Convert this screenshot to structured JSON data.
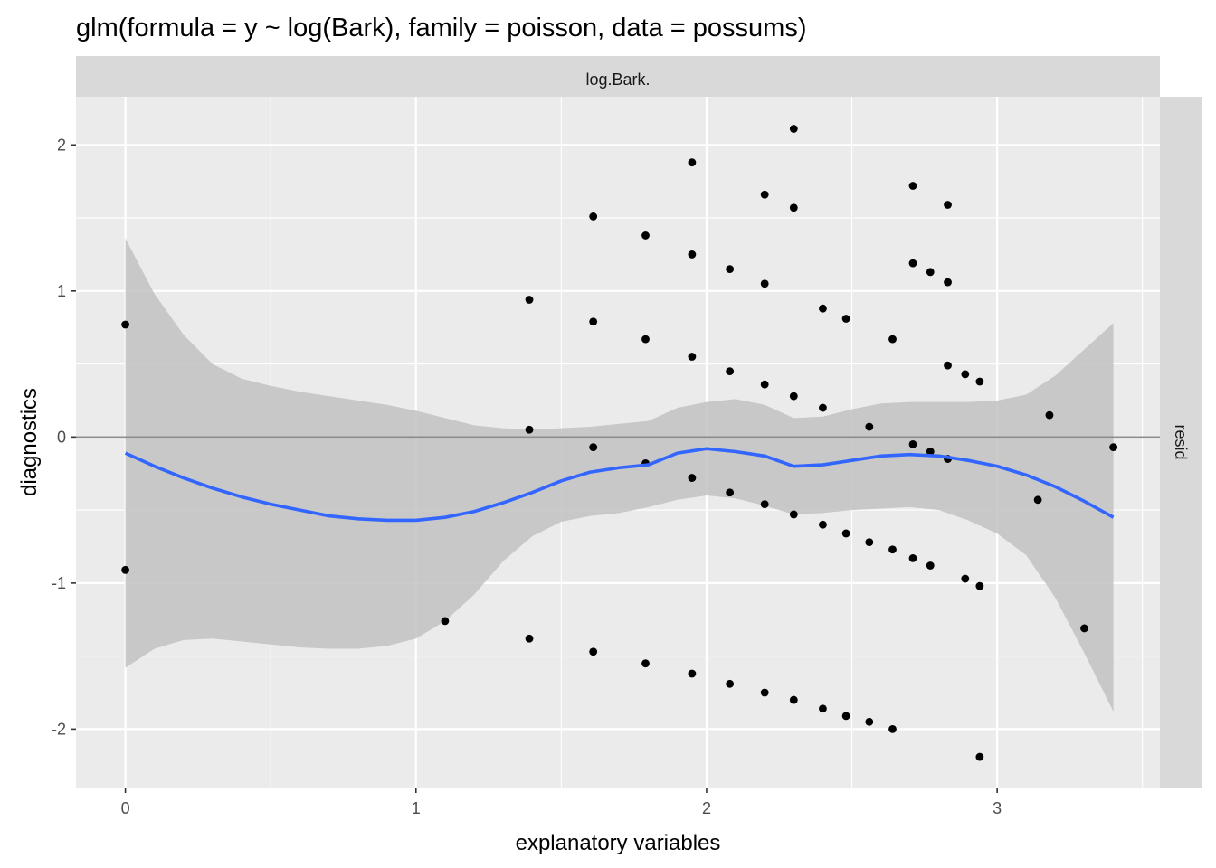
{
  "chart_data": {
    "type": "scatter",
    "title": "glm(formula = y ~ log(Bark), family = poisson, data = possums)",
    "xlabel": "explanatory variables",
    "ylabel": "diagnostics",
    "facet_top_label": "log.Bark.",
    "facet_right_label": "resid",
    "xlim": [
      -0.17,
      3.56
    ],
    "ylim": [
      -2.4,
      2.33
    ],
    "x_ticks": [
      0,
      1,
      2,
      3
    ],
    "x_tick_labels": [
      "0",
      "1",
      "2",
      "3"
    ],
    "y_ticks": [
      -2,
      -1,
      0,
      1,
      2
    ],
    "y_tick_labels": [
      "-2",
      "-1",
      "0",
      "1",
      "2"
    ],
    "hline": 0,
    "colors": {
      "panel_bg": "#ebebeb",
      "grid": "#ffffff",
      "strip_bg": "#d9d9d9",
      "point": "#000000",
      "smooth": "#3366ff",
      "ribbon": "#c2c2c2",
      "hline": "#8c8c8c"
    },
    "points": [
      {
        "x": 0.0,
        "y": 0.77
      },
      {
        "x": 0.0,
        "y": -0.91
      },
      {
        "x": 1.1,
        "y": -1.26
      },
      {
        "x": 1.39,
        "y": 0.94
      },
      {
        "x": 1.39,
        "y": 0.05
      },
      {
        "x": 1.39,
        "y": -1.38
      },
      {
        "x": 1.61,
        "y": 1.51
      },
      {
        "x": 1.61,
        "y": 0.79
      },
      {
        "x": 1.61,
        "y": -0.07
      },
      {
        "x": 1.61,
        "y": -1.47
      },
      {
        "x": 1.79,
        "y": 1.38
      },
      {
        "x": 1.79,
        "y": 0.67
      },
      {
        "x": 1.79,
        "y": -0.18
      },
      {
        "x": 1.79,
        "y": -1.55
      },
      {
        "x": 1.95,
        "y": 1.88
      },
      {
        "x": 1.95,
        "y": 1.25
      },
      {
        "x": 1.95,
        "y": 0.55
      },
      {
        "x": 1.95,
        "y": -0.28
      },
      {
        "x": 1.95,
        "y": -1.62
      },
      {
        "x": 2.08,
        "y": 1.15
      },
      {
        "x": 2.08,
        "y": 0.45
      },
      {
        "x": 2.08,
        "y": -0.38
      },
      {
        "x": 2.08,
        "y": -1.69
      },
      {
        "x": 2.2,
        "y": 1.66
      },
      {
        "x": 2.2,
        "y": 1.05
      },
      {
        "x": 2.2,
        "y": 0.36
      },
      {
        "x": 2.2,
        "y": -0.46
      },
      {
        "x": 2.2,
        "y": -1.75
      },
      {
        "x": 2.3,
        "y": 2.11
      },
      {
        "x": 2.3,
        "y": 1.57
      },
      {
        "x": 2.3,
        "y": 0.28
      },
      {
        "x": 2.3,
        "y": -0.53
      },
      {
        "x": 2.3,
        "y": -1.8
      },
      {
        "x": 2.4,
        "y": 0.88
      },
      {
        "x": 2.4,
        "y": 0.2
      },
      {
        "x": 2.4,
        "y": -0.6
      },
      {
        "x": 2.4,
        "y": -1.86
      },
      {
        "x": 2.48,
        "y": 0.81
      },
      {
        "x": 2.48,
        "y": -0.66
      },
      {
        "x": 2.48,
        "y": -1.91
      },
      {
        "x": 2.56,
        "y": 0.07
      },
      {
        "x": 2.56,
        "y": -0.72
      },
      {
        "x": 2.56,
        "y": -1.95
      },
      {
        "x": 2.64,
        "y": 0.67
      },
      {
        "x": 2.64,
        "y": -0.77
      },
      {
        "x": 2.64,
        "y": -2.0
      },
      {
        "x": 2.71,
        "y": 1.72
      },
      {
        "x": 2.71,
        "y": 1.19
      },
      {
        "x": 2.71,
        "y": -0.05
      },
      {
        "x": 2.71,
        "y": -0.83
      },
      {
        "x": 2.77,
        "y": 1.13
      },
      {
        "x": 2.77,
        "y": -0.1
      },
      {
        "x": 2.77,
        "y": -0.88
      },
      {
        "x": 2.83,
        "y": 1.59
      },
      {
        "x": 2.83,
        "y": 1.06
      },
      {
        "x": 2.83,
        "y": 0.49
      },
      {
        "x": 2.83,
        "y": -0.15
      },
      {
        "x": 2.89,
        "y": 0.43
      },
      {
        "x": 2.89,
        "y": -0.97
      },
      {
        "x": 2.94,
        "y": 0.38
      },
      {
        "x": 2.94,
        "y": -1.02
      },
      {
        "x": 2.94,
        "y": -2.19
      },
      {
        "x": 3.14,
        "y": -0.43
      },
      {
        "x": 3.18,
        "y": 0.15
      },
      {
        "x": 3.3,
        "y": -1.31
      },
      {
        "x": 3.4,
        "y": -0.07
      }
    ],
    "smooth": {
      "x": [
        0.0,
        0.1,
        0.2,
        0.3,
        0.4,
        0.5,
        0.6,
        0.7,
        0.8,
        0.9,
        1.0,
        1.1,
        1.2,
        1.3,
        1.4,
        1.5,
        1.6,
        1.7,
        1.8,
        1.9,
        2.0,
        2.1,
        2.2,
        2.3,
        2.4,
        2.5,
        2.6,
        2.7,
        2.8,
        2.9,
        3.0,
        3.1,
        3.2,
        3.3,
        3.4
      ],
      "y": [
        -0.11,
        -0.2,
        -0.28,
        -0.35,
        -0.41,
        -0.46,
        -0.5,
        -0.54,
        -0.56,
        -0.57,
        -0.57,
        -0.55,
        -0.51,
        -0.45,
        -0.38,
        -0.3,
        -0.24,
        -0.21,
        -0.19,
        -0.11,
        -0.08,
        -0.1,
        -0.13,
        -0.2,
        -0.19,
        -0.16,
        -0.13,
        -0.12,
        -0.13,
        -0.16,
        -0.2,
        -0.26,
        -0.34,
        -0.44,
        -0.55
      ],
      "upper": [
        1.36,
        0.98,
        0.7,
        0.5,
        0.4,
        0.35,
        0.31,
        0.28,
        0.25,
        0.22,
        0.18,
        0.13,
        0.08,
        0.06,
        0.05,
        0.06,
        0.07,
        0.09,
        0.11,
        0.2,
        0.24,
        0.26,
        0.22,
        0.13,
        0.14,
        0.19,
        0.23,
        0.24,
        0.24,
        0.24,
        0.25,
        0.29,
        0.42,
        0.6,
        0.78
      ],
      "lower": [
        -1.58,
        -1.45,
        -1.39,
        -1.38,
        -1.4,
        -1.42,
        -1.44,
        -1.45,
        -1.45,
        -1.43,
        -1.38,
        -1.26,
        -1.08,
        -0.85,
        -0.68,
        -0.58,
        -0.54,
        -0.52,
        -0.48,
        -0.43,
        -0.4,
        -0.42,
        -0.47,
        -0.53,
        -0.52,
        -0.5,
        -0.49,
        -0.48,
        -0.5,
        -0.57,
        -0.66,
        -0.81,
        -1.1,
        -1.48,
        -1.88
      ]
    }
  }
}
